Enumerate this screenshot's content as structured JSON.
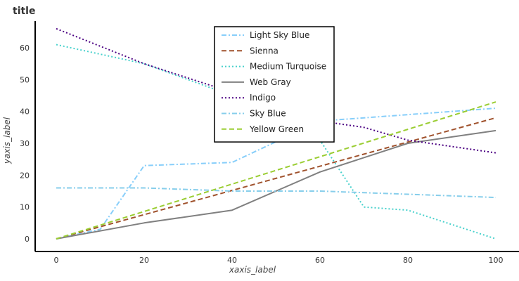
{
  "chart_data": {
    "type": "line",
    "title": "title",
    "xlabel": "xaxis_label",
    "ylabel": "yaxis_label",
    "xlim": [
      0,
      100
    ],
    "ylim": [
      0,
      68
    ],
    "x_ticks": [
      "0",
      "20",
      "40",
      "60",
      "80",
      "100"
    ],
    "y_ticks": [
      "0",
      "10",
      "20",
      "30",
      "40",
      "50",
      "60"
    ],
    "grid": false,
    "legend_position": "top-center",
    "series": [
      {
        "name": "Light Sky Blue",
        "color": "#87cefa",
        "dash": "dashdot",
        "points": [
          [
            0,
            0
          ],
          [
            10,
            3
          ],
          [
            20,
            23
          ],
          [
            40,
            24
          ],
          [
            60,
            37
          ],
          [
            80,
            39
          ],
          [
            100,
            41
          ]
        ]
      },
      {
        "name": "Sienna",
        "color": "#a0522d",
        "dash": "dash",
        "points": [
          [
            0,
            0
          ],
          [
            100,
            38
          ]
        ]
      },
      {
        "name": "Medium Turquoise",
        "color": "#48d1cc",
        "dash": "dot",
        "points": [
          [
            0,
            61
          ],
          [
            20,
            55
          ],
          [
            40,
            45
          ],
          [
            60,
            31
          ],
          [
            70,
            10
          ],
          [
            80,
            9
          ],
          [
            100,
            0
          ]
        ]
      },
      {
        "name": "Web Gray",
        "color": "#808080",
        "dash": "solid",
        "points": [
          [
            0,
            0
          ],
          [
            20,
            5
          ],
          [
            40,
            9
          ],
          [
            50,
            15
          ],
          [
            60,
            21
          ],
          [
            80,
            30
          ],
          [
            100,
            34
          ]
        ]
      },
      {
        "name": "Indigo",
        "color": "#4b0082",
        "dash": "dot",
        "points": [
          [
            0,
            66
          ],
          [
            20,
            55
          ],
          [
            40,
            46
          ],
          [
            60,
            37
          ],
          [
            70,
            35
          ],
          [
            80,
            31
          ],
          [
            100,
            27
          ]
        ]
      },
      {
        "name": "Sky Blue",
        "color": "#87ceeb",
        "dash": "dashdot",
        "points": [
          [
            0,
            16
          ],
          [
            20,
            16
          ],
          [
            40,
            15
          ],
          [
            60,
            15
          ],
          [
            80,
            14
          ],
          [
            100,
            13
          ]
        ]
      },
      {
        "name": "Yellow Green",
        "color": "#9acd32",
        "dash": "dash",
        "points": [
          [
            0,
            0
          ],
          [
            100,
            43
          ]
        ]
      }
    ]
  }
}
